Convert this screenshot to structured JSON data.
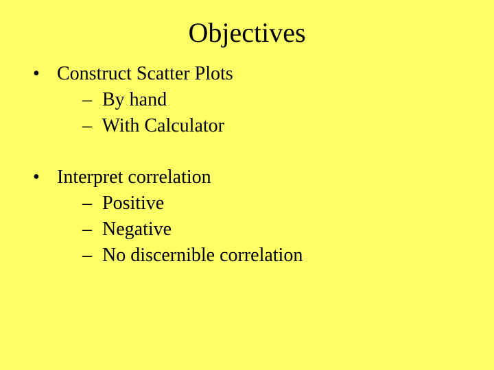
{
  "background_color": "#ffff66",
  "text_color": "#000000",
  "font_family": "Times New Roman",
  "title": {
    "text": "Objectives",
    "fontsize": 40,
    "align": "center"
  },
  "body_fontsize": 28,
  "bullets": {
    "level1_marker": "•",
    "level2_marker": "–"
  },
  "items": [
    {
      "label": "Construct Scatter Plots",
      "subitems": [
        {
          "label": "By hand"
        },
        {
          "label": "With Calculator"
        }
      ]
    },
    {
      "label": "Interpret correlation",
      "subitems": [
        {
          "label": "Positive"
        },
        {
          "label": "Negative"
        },
        {
          "label": "No discernible correlation"
        }
      ]
    }
  ]
}
